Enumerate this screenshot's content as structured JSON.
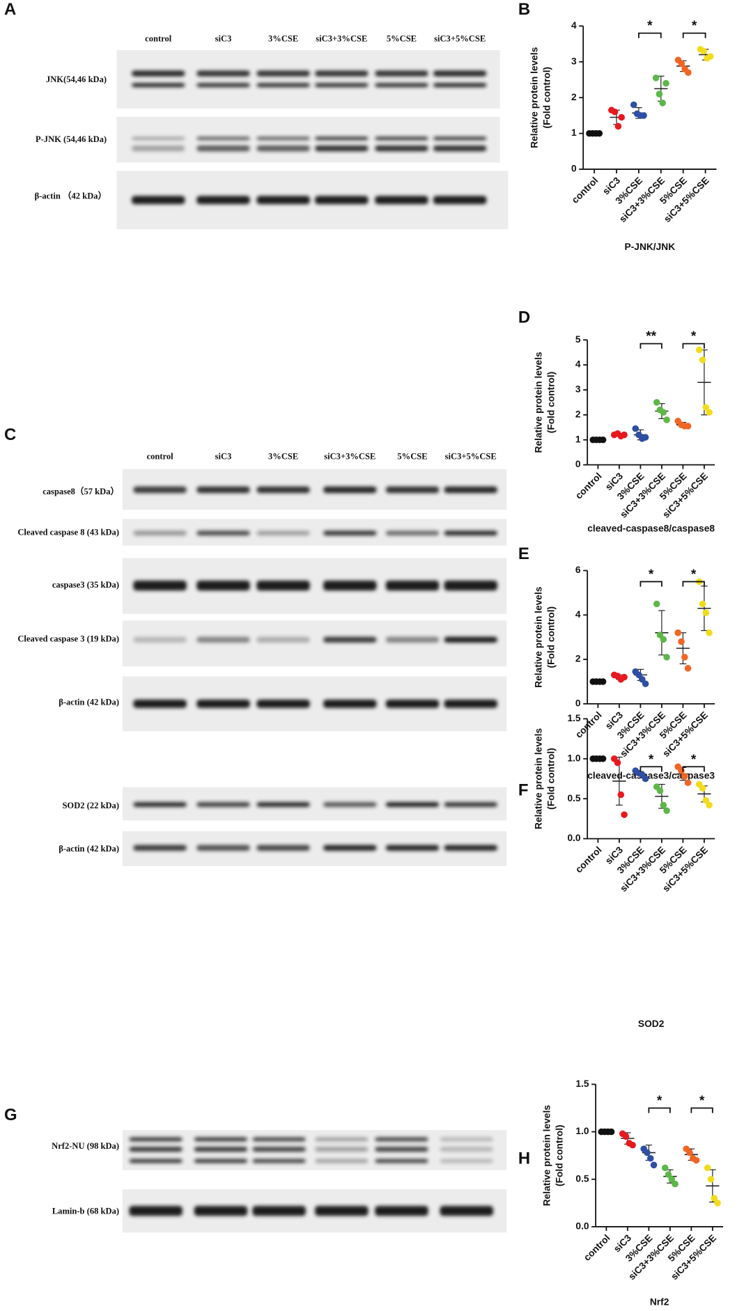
{
  "blots": [
    {
      "panel": "A",
      "lanes": [
        "control",
        "siC3",
        "3%CSE",
        "siC3+3%CSE",
        "5%CSE",
        "siC3+5%CSE"
      ],
      "rows": [
        "JNK(54,46 kDa)",
        "P-JNK (54,46 kDa)",
        "β-actin （42 kDa）"
      ]
    },
    {
      "panel": "C",
      "lanes": [
        "control",
        "siC3",
        "3%CSE",
        "siC3+3%CSE",
        "5%CSE",
        "siC3+5%CSE"
      ],
      "rows": [
        "caspase8（57 kDa）",
        "Cleaved caspase 8 (43 kDa)",
        "caspase3 (35 kDa)",
        "Cleaved caspase 3 (19 kDa)",
        "β-actin (42 kDa)",
        "SOD2 (22 kDa)",
        "β-actin (42 kDa)"
      ]
    },
    {
      "panel": "G",
      "rows": [
        "Nrf2-NU (98 kDa)",
        "Lamin-b (68 kDa)"
      ]
    }
  ],
  "chart_data": [
    {
      "type": "dot",
      "panel": "B",
      "ylabel": [
        "Relative protein levels",
        "(Fold control)"
      ],
      "xlabel": "P-JNK/JNK",
      "categories": [
        "control",
        "siC3",
        "3%CSE",
        "siC3+3%CSE",
        "5%CSE",
        "siC3+5%CSE"
      ],
      "colors": [
        "#111111",
        "#e8191e",
        "#2e4fa3",
        "#5cb847",
        "#f26522",
        "#f2dc1a"
      ],
      "points": [
        [
          1,
          1,
          1,
          1
        ],
        [
          1.65,
          1.6,
          1.2,
          1.45
        ],
        [
          1.8,
          1.55,
          1.5,
          1.5
        ],
        [
          2.55,
          2.1,
          1.85,
          2.4
        ],
        [
          3.05,
          2.95,
          2.8,
          2.7
        ],
        [
          3.35,
          3.3,
          3.1,
          3.15
        ]
      ],
      "means": [
        1,
        1.45,
        1.57,
        2.25,
        2.88,
        3.2
      ],
      "sd": [
        0,
        0.2,
        0.15,
        0.35,
        0.15,
        0.15
      ],
      "ylim": [
        0,
        4
      ],
      "yticks": [
        0,
        1,
        2,
        3,
        4
      ],
      "annotations": [
        {
          "between": [
            "3%CSE",
            "siC3+3%CSE"
          ],
          "y": 3.8,
          "text": "*"
        },
        {
          "between": [
            "5%CSE",
            "siC3+5%CSE"
          ],
          "y": 3.8,
          "text": "*"
        }
      ]
    },
    {
      "type": "dot",
      "panel": "D",
      "ylabel": [
        "Relative protein levels",
        "(Fold control)"
      ],
      "xlabel": "cleaved-caspase8/caspase8",
      "categories": [
        "control",
        "siC3",
        "3%CSE",
        "siC3+3%CSE",
        "5%CSE",
        "siC3+5%CSE"
      ],
      "colors": [
        "#111111",
        "#e8191e",
        "#2e4fa3",
        "#5cb847",
        "#f26522",
        "#f2dc1a"
      ],
      "points": [
        [
          1,
          1,
          1,
          1
        ],
        [
          1.2,
          1.25,
          1.15,
          1.2
        ],
        [
          1.45,
          1.2,
          1.05,
          1.1
        ],
        [
          2.5,
          2.2,
          2.1,
          1.8
        ],
        [
          1.75,
          1.6,
          1.55,
          1.55
        ],
        [
          4.6,
          4.2,
          2.3,
          2.1
        ]
      ],
      "means": [
        1,
        1.2,
        1.2,
        2.15,
        1.6,
        3.3
      ],
      "sd": [
        0,
        0.05,
        0.2,
        0.3,
        0.1,
        1.3
      ],
      "ylim": [
        0,
        5
      ],
      "yticks": [
        0,
        1,
        2,
        3,
        4,
        5
      ],
      "annotations": [
        {
          "between": [
            "3%CSE",
            "siC3+3%CSE"
          ],
          "y": 4.85,
          "text": "**"
        },
        {
          "between": [
            "5%CSE",
            "siC3+5%CSE"
          ],
          "y": 4.85,
          "text": "*"
        }
      ]
    },
    {
      "type": "dot",
      "panel": "E",
      "ylabel": [
        "Relative protein levels",
        "(Fold control)"
      ],
      "xlabel": "cleaved-caspase3/caspase3",
      "categories": [
        "control",
        "siC3",
        "3%CSE",
        "siC3+3%CSE",
        "5%CSE",
        "siC3+5%CSE"
      ],
      "colors": [
        "#111111",
        "#e8191e",
        "#2e4fa3",
        "#5cb847",
        "#f26522",
        "#f2dc1a"
      ],
      "points": [
        [
          1,
          1,
          1,
          1
        ],
        [
          1.3,
          1.25,
          1.1,
          1.2
        ],
        [
          1.45,
          1.3,
          1.1,
          0.9
        ],
        [
          4.5,
          3.1,
          2.9,
          2.1
        ],
        [
          3.2,
          2.8,
          2.1,
          1.6
        ],
        [
          5.5,
          4.5,
          4.1,
          3.2
        ]
      ],
      "means": [
        1,
        1.2,
        1.3,
        3.2,
        2.5,
        4.3
      ],
      "sd": [
        0,
        0.1,
        0.25,
        1.0,
        0.7,
        1.0
      ],
      "ylim": [
        0,
        6
      ],
      "yticks": [
        0,
        2,
        4,
        6
      ],
      "annotations": [
        {
          "between": [
            "3%CSE",
            "siC3+3%CSE"
          ],
          "y": 5.5,
          "text": "*"
        },
        {
          "between": [
            "5%CSE",
            "siC3+5%CSE"
          ],
          "y": 5.5,
          "text": "*"
        }
      ]
    },
    {
      "type": "dot",
      "panel": "F",
      "ylabel": [
        "Relative protein levels",
        "(Fold control)"
      ],
      "xlabel": "SOD2",
      "categories": [
        "control",
        "siC3",
        "3%CSE",
        "siC3+3%CSE",
        "5%CSE",
        "siC3+5%CSE"
      ],
      "colors": [
        "#111111",
        "#e8191e",
        "#2e4fa3",
        "#5cb847",
        "#f26522",
        "#f2dc1a"
      ],
      "points": [
        [
          1,
          1,
          1,
          1
        ],
        [
          1.0,
          0.95,
          0.55,
          0.3
        ],
        [
          0.85,
          0.82,
          0.8,
          0.75
        ],
        [
          0.65,
          0.6,
          0.42,
          0.35
        ],
        [
          0.9,
          0.85,
          0.78,
          0.7
        ],
        [
          0.68,
          0.63,
          0.48,
          0.42
        ]
      ],
      "means": [
        1,
        0.72,
        0.8,
        0.53,
        0.81,
        0.56
      ],
      "sd": [
        0,
        0.3,
        0.04,
        0.15,
        0.08,
        0.1
      ],
      "ylim": [
        0,
        1.5
      ],
      "yticks": [
        {
          "value": 0,
          "label": "0.0"
        },
        0.5,
        {
          "value": 1,
          "label": "1.0"
        },
        1.5
      ],
      "annotations": [
        {
          "between": [
            "3%CSE",
            "siC3+3%CSE"
          ],
          "y": 0.9,
          "text": "*"
        },
        {
          "between": [
            "5%CSE",
            "siC3+5%CSE"
          ],
          "y": 0.9,
          "text": "*"
        }
      ]
    },
    {
      "type": "dot",
      "panel": "H",
      "ylabel": [
        "Relative protein levels",
        "(Fold control)"
      ],
      "xlabel": "Nrf2",
      "categories": [
        "control",
        "siC3",
        "3%CSE",
        "siC3+3%CSE",
        "5%CSE",
        "siC3+5%CSE"
      ],
      "colors": [
        "#111111",
        "#e8191e",
        "#2e4fa3",
        "#5cb847",
        "#f26522",
        "#f2dc1a"
      ],
      "points": [
        [
          1,
          1,
          1,
          1
        ],
        [
          0.98,
          0.95,
          0.88,
          0.86
        ],
        [
          0.82,
          0.78,
          0.72,
          0.65
        ],
        [
          0.62,
          0.55,
          0.5,
          0.45
        ],
        [
          0.82,
          0.78,
          0.72,
          0.7
        ],
        [
          0.62,
          0.5,
          0.3,
          0.25
        ]
      ],
      "means": [
        1,
        0.93,
        0.78,
        0.53,
        0.76,
        0.43
      ],
      "sd": [
        0,
        0.06,
        0.08,
        0.07,
        0.06,
        0.17
      ],
      "ylim": [
        0,
        1.5
      ],
      "yticks": [
        {
          "value": 0,
          "label": "0.0"
        },
        0.5,
        {
          "value": 1,
          "label": "1.0"
        },
        1.5
      ],
      "annotations": [
        {
          "between": [
            "3%CSE",
            "siC3+3%CSE"
          ],
          "y": 1.25,
          "text": "*"
        },
        {
          "between": [
            "5%CSE",
            "siC3+5%CSE"
          ],
          "y": 1.25,
          "text": "*"
        }
      ]
    }
  ]
}
